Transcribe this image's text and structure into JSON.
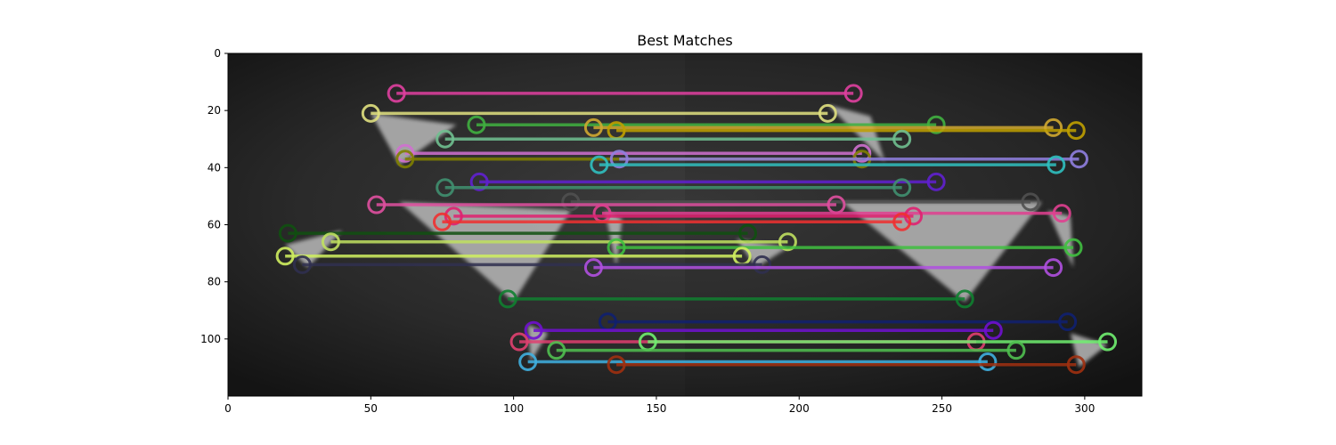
{
  "chart_data": {
    "type": "image-with-keypoint-matches",
    "title": "Best Matches",
    "xlabel": "",
    "ylabel": "",
    "xlim": [
      0,
      320
    ],
    "ylim": [
      120,
      0
    ],
    "xticks": [
      0,
      50,
      100,
      150,
      200,
      250,
      300
    ],
    "yticks": [
      0,
      20,
      40,
      60,
      80,
      100
    ],
    "image_halves_divider_x": 160,
    "triangles": [
      {
        "points": [
          [
            50,
            21
          ],
          [
            80,
            25
          ],
          [
            60,
            39
          ]
        ]
      },
      {
        "points": [
          [
            210,
            18
          ],
          [
            225,
            22
          ],
          [
            230,
            38
          ]
        ]
      },
      {
        "points": [
          [
            60,
            52
          ],
          [
            120,
            55
          ],
          [
            100,
            87
          ]
        ]
      },
      {
        "points": [
          [
            215,
            52
          ],
          [
            285,
            52
          ],
          [
            258,
            87
          ]
        ]
      },
      {
        "points": [
          [
            20,
            67
          ],
          [
            40,
            62
          ],
          [
            28,
            75
          ]
        ]
      },
      {
        "points": [
          [
            178,
            65
          ],
          [
            196,
            68
          ],
          [
            185,
            75
          ]
        ]
      },
      {
        "points": [
          [
            132,
            55
          ],
          [
            138,
            58
          ],
          [
            136,
            75
          ]
        ]
      },
      {
        "points": [
          [
            287,
            55
          ],
          [
            295,
            57
          ],
          [
            296,
            75
          ]
        ]
      },
      {
        "points": [
          [
            105,
            95
          ],
          [
            112,
            98
          ],
          [
            106,
            108
          ]
        ]
      },
      {
        "points": [
          [
            295,
            98
          ],
          [
            308,
            102
          ],
          [
            298,
            110
          ]
        ]
      }
    ],
    "matches": [
      {
        "x1": 59,
        "y1": 14,
        "x2": 219,
        "y2": 14,
        "color": "#e040a0"
      },
      {
        "x1": 50,
        "y1": 21,
        "x2": 210,
        "y2": 21,
        "color": "#e0e080"
      },
      {
        "x1": 87,
        "y1": 25,
        "x2": 248,
        "y2": 25,
        "color": "#40b040"
      },
      {
        "x1": 128,
        "y1": 26,
        "x2": 289,
        "y2": 26,
        "color": "#d0a830"
      },
      {
        "x1": 136,
        "y1": 27,
        "x2": 297,
        "y2": 27,
        "color": "#c0a000"
      },
      {
        "x1": 76,
        "y1": 30,
        "x2": 236,
        "y2": 30,
        "color": "#70c090"
      },
      {
        "x1": 62,
        "y1": 35,
        "x2": 222,
        "y2": 35,
        "color": "#d070d0"
      },
      {
        "x1": 62,
        "y1": 37,
        "x2": 222,
        "y2": 37,
        "color": "#808000"
      },
      {
        "x1": 137,
        "y1": 37,
        "x2": 298,
        "y2": 37,
        "color": "#9080e0"
      },
      {
        "x1": 130,
        "y1": 39,
        "x2": 290,
        "y2": 39,
        "color": "#30c0c0"
      },
      {
        "x1": 88,
        "y1": 45,
        "x2": 248,
        "y2": 45,
        "color": "#6020d0"
      },
      {
        "x1": 76,
        "y1": 47,
        "x2": 236,
        "y2": 47,
        "color": "#409070"
      },
      {
        "x1": 120,
        "y1": 52,
        "x2": 281,
        "y2": 52,
        "color": "#505050"
      },
      {
        "x1": 52,
        "y1": 53,
        "x2": 213,
        "y2": 53,
        "color": "#e050a0"
      },
      {
        "x1": 131,
        "y1": 56,
        "x2": 292,
        "y2": 56,
        "color": "#e04090"
      },
      {
        "x1": 79,
        "y1": 57,
        "x2": 240,
        "y2": 57,
        "color": "#e02070"
      },
      {
        "x1": 75,
        "y1": 59,
        "x2": 236,
        "y2": 59,
        "color": "#f03030"
      },
      {
        "x1": 21,
        "y1": 63,
        "x2": 182,
        "y2": 63,
        "color": "#105010"
      },
      {
        "x1": 36,
        "y1": 66,
        "x2": 196,
        "y2": 66,
        "color": "#c0e060"
      },
      {
        "x1": 136,
        "y1": 68,
        "x2": 296,
        "y2": 68,
        "color": "#40c040"
      },
      {
        "x1": 20,
        "y1": 71,
        "x2": 180,
        "y2": 71,
        "color": "#d0f060"
      },
      {
        "x1": 26,
        "y1": 74,
        "x2": 187,
        "y2": 74,
        "color": "#303050"
      },
      {
        "x1": 128,
        "y1": 75,
        "x2": 289,
        "y2": 75,
        "color": "#b050e0"
      },
      {
        "x1": 98,
        "y1": 86,
        "x2": 258,
        "y2": 86,
        "color": "#108030"
      },
      {
        "x1": 133,
        "y1": 94,
        "x2": 294,
        "y2": 94,
        "color": "#102070"
      },
      {
        "x1": 107,
        "y1": 97,
        "x2": 268,
        "y2": 97,
        "color": "#7010d0"
      },
      {
        "x1": 102,
        "y1": 101,
        "x2": 262,
        "y2": 101,
        "color": "#e04070"
      },
      {
        "x1": 147,
        "y1": 101,
        "x2": 308,
        "y2": 101,
        "color": "#70f070"
      },
      {
        "x1": 115,
        "y1": 104,
        "x2": 276,
        "y2": 104,
        "color": "#50c050"
      },
      {
        "x1": 105,
        "y1": 108,
        "x2": 266,
        "y2": 108,
        "color": "#40b0e0"
      },
      {
        "x1": 136,
        "y1": 109,
        "x2": 297,
        "y2": 109,
        "color": "#a03010"
      }
    ]
  }
}
